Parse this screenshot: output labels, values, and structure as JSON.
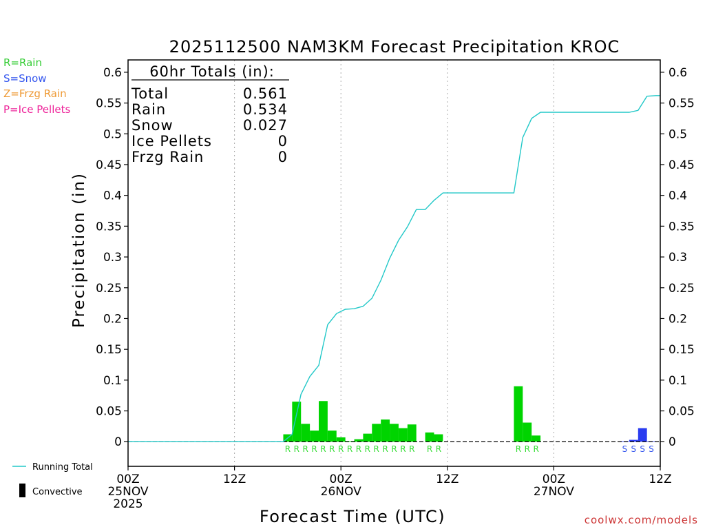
{
  "chart_data": {
    "type": "bar",
    "title": "2025112500 NAM3KM Forecast Precipitation KROC",
    "xlabel": "Forecast Time (UTC)",
    "ylabel": "Precipitation (in)",
    "ylim": [
      -0.04,
      0.62
    ],
    "xlim": [
      0,
      60
    ],
    "yticks": [
      0,
      0.05,
      0.1,
      0.15,
      0.2,
      0.25,
      0.3,
      0.35,
      0.4,
      0.45,
      0.5,
      0.55,
      0.6
    ],
    "ytick_labels": [
      "0",
      "0.05",
      "0.1",
      "0.15",
      "0.2",
      "0.25",
      "0.3",
      "0.35",
      "0.4",
      "0.45",
      "0.5",
      "0.55",
      "0.6"
    ],
    "xticks": [
      {
        "hour": 0,
        "lines": [
          "00Z",
          "25NOV",
          "2025"
        ]
      },
      {
        "hour": 12,
        "lines": [
          "12Z"
        ]
      },
      {
        "hour": 24,
        "lines": [
          "00Z",
          "26NOV"
        ]
      },
      {
        "hour": 36,
        "lines": [
          "12Z"
        ]
      },
      {
        "hour": 48,
        "lines": [
          "00Z",
          "27NOV"
        ]
      },
      {
        "hour": 60,
        "lines": [
          "12Z"
        ]
      }
    ],
    "bar_width_hours": 1,
    "bars": [
      {
        "hour": 18,
        "value": 0.012,
        "type": "R"
      },
      {
        "hour": 19,
        "value": 0.065,
        "type": "R"
      },
      {
        "hour": 20,
        "value": 0.029,
        "type": "R"
      },
      {
        "hour": 21,
        "value": 0.018,
        "type": "R"
      },
      {
        "hour": 22,
        "value": 0.066,
        "type": "R"
      },
      {
        "hour": 23,
        "value": 0.018,
        "type": "R"
      },
      {
        "hour": 24,
        "value": 0.007,
        "type": "R"
      },
      {
        "hour": 25,
        "value": 0.001,
        "type": "R"
      },
      {
        "hour": 26,
        "value": 0.004,
        "type": "R"
      },
      {
        "hour": 27,
        "value": 0.013,
        "type": "R"
      },
      {
        "hour": 28,
        "value": 0.029,
        "type": "R"
      },
      {
        "hour": 29,
        "value": 0.036,
        "type": "R"
      },
      {
        "hour": 30,
        "value": 0.029,
        "type": "R"
      },
      {
        "hour": 31,
        "value": 0.022,
        "type": "R"
      },
      {
        "hour": 32,
        "value": 0.028,
        "type": "R"
      },
      {
        "hour": 34,
        "value": 0.015,
        "type": "R"
      },
      {
        "hour": 35,
        "value": 0.012,
        "type": "R"
      },
      {
        "hour": 44,
        "value": 0.09,
        "type": "R"
      },
      {
        "hour": 45,
        "value": 0.031,
        "type": "R"
      },
      {
        "hour": 46,
        "value": 0.01,
        "type": "R"
      },
      {
        "hour": 56,
        "value": 0.0008,
        "type": "S"
      },
      {
        "hour": 57,
        "value": 0.003,
        "type": "S"
      },
      {
        "hour": 58,
        "value": 0.022,
        "type": "S"
      },
      {
        "hour": 59,
        "value": 0.0008,
        "type": "S"
      }
    ],
    "running_total": {
      "name": "Running Total",
      "x": [
        0,
        17.5,
        18.5,
        19.5,
        20.5,
        21.5,
        22.5,
        23.5,
        24.5,
        25.5,
        26.5,
        27.5,
        28.5,
        29.5,
        30.5,
        31.5,
        32.5,
        33.5,
        34.5,
        35.5,
        36.5,
        37.5,
        38.5,
        39.5,
        40.5,
        41.5,
        42.5,
        43.5,
        44.5,
        45.5,
        46.5,
        47.5,
        48.5,
        49.5,
        50.5,
        51.5,
        52.5,
        53.5,
        54.5,
        55.5,
        56.5,
        57.5,
        58.5,
        59.5,
        60
      ],
      "y": [
        0,
        0,
        0.012,
        0.077,
        0.106,
        0.124,
        0.19,
        0.208,
        0.215,
        0.216,
        0.22,
        0.233,
        0.262,
        0.298,
        0.327,
        0.349,
        0.377,
        0.377,
        0.392,
        0.404,
        0.404,
        0.404,
        0.404,
        0.404,
        0.404,
        0.404,
        0.404,
        0.404,
        0.494,
        0.525,
        0.535,
        0.535,
        0.535,
        0.535,
        0.535,
        0.535,
        0.535,
        0.535,
        0.535,
        0.535,
        0.535,
        0.538,
        0.561,
        0.562,
        0.562
      ]
    },
    "totals_box": {
      "heading": "60hr Totals (in):",
      "rows": [
        {
          "label": "Total",
          "value": "0.561"
        },
        {
          "label": "Rain",
          "value": "0.534"
        },
        {
          "label": "Snow",
          "value": "0.027"
        },
        {
          "label": "Ice Pellets",
          "value": "0"
        },
        {
          "label": "Frzg Rain",
          "value": "0"
        }
      ]
    },
    "type_key": [
      {
        "code": "R",
        "text": "R=Rain",
        "color": "#33cc33"
      },
      {
        "code": "S",
        "text": "S=Snow",
        "color": "#3355ee"
      },
      {
        "code": "Z",
        "text": "Z=Frzg Rain",
        "color": "#ee9933"
      },
      {
        "code": "P",
        "text": "P=Ice Pellets",
        "color": "#ee2299"
      }
    ],
    "bottom_legend": {
      "running_total_label": "Running Total",
      "convective_label": "Convective"
    },
    "colors": {
      "rain_bar": "#00d400",
      "snow_bar": "#2a3cf0",
      "running_total_line": "#22c8c8",
      "rain_letter": "#33dd33",
      "snow_letter": "#3355ee"
    }
  },
  "watermark": "coolwx.com/models"
}
